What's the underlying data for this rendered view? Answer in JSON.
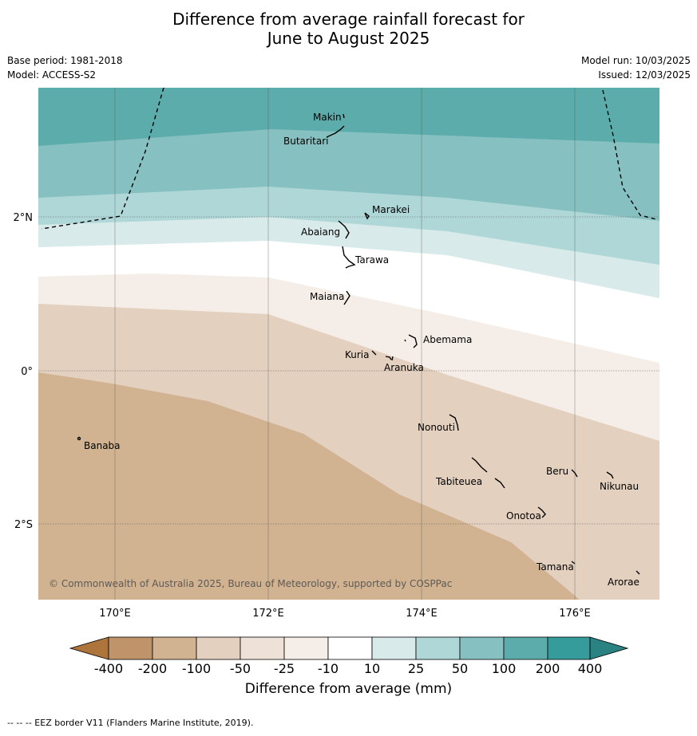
{
  "title_line1": "Difference from average rainfall forecast for",
  "title_line2": "June to August 2025",
  "meta_left": [
    "Base period: 1981-2018",
    "Model: ACCESS-S2"
  ],
  "meta_right": [
    "Model run: 10/03/2025",
    "Issued: 12/03/2025"
  ],
  "copyright": "© Commonwealth of Australia 2025, Bureau of Meteorology, supported by COSPPac",
  "axis": {
    "lon_labels": [
      "170°E",
      "172°E",
      "174°E",
      "176°E"
    ],
    "lat_labels": [
      "2°N",
      "0°",
      "2°S"
    ]
  },
  "islands": [
    {
      "name": "Makin",
      "lon": 173.0,
      "lat": 3.35
    },
    {
      "name": "Butaritari",
      "lon": 172.8,
      "lat": 3.05
    },
    {
      "name": "Marakei",
      "lon": 173.3,
      "lat": 2.0
    },
    {
      "name": "Abaiang",
      "lon": 173.0,
      "lat": 1.85
    },
    {
      "name": "Tarawa",
      "lon": 173.0,
      "lat": 1.4
    },
    {
      "name": "Maiana",
      "lon": 173.05,
      "lat": 0.95
    },
    {
      "name": "Abemama",
      "lon": 173.85,
      "lat": 0.4
    },
    {
      "name": "Kuria",
      "lon": 173.4,
      "lat": 0.22
    },
    {
      "name": "Aranuka",
      "lon": 173.6,
      "lat": 0.17
    },
    {
      "name": "Nonouti",
      "lon": 174.4,
      "lat": -0.65
    },
    {
      "name": "Banaba",
      "lon": 169.55,
      "lat": -0.87
    },
    {
      "name": "Tabiteuea",
      "lon": 174.85,
      "lat": -1.3
    },
    {
      "name": "Beru",
      "lon": 176.0,
      "lat": -1.35
    },
    {
      "name": "Nikunau",
      "lon": 176.45,
      "lat": -1.35
    },
    {
      "name": "Onotoa",
      "lon": 175.55,
      "lat": -1.8
    },
    {
      "name": "Tamana",
      "lon": 175.98,
      "lat": -2.5
    },
    {
      "name": "Arorae",
      "lon": 176.8,
      "lat": -2.65
    }
  ],
  "colorbar": {
    "title": "Difference from average (mm)",
    "ticks": [
      "-400",
      "-200",
      "-100",
      "-50",
      "-25",
      "-10",
      "10",
      "25",
      "50",
      "100",
      "200",
      "400"
    ],
    "colors": [
      "#ad743b",
      "#c0946a",
      "#d1b291",
      "#e3d0bf",
      "#f5ede7",
      "#ffffff",
      "#d8eaea",
      "#afd7d7",
      "#87c0c0",
      "#5cacac",
      "#369b9b",
      "#2a8282"
    ]
  },
  "footnote": "--  --  -- EEZ border V11 (Flanders Marine Institute, 2019)."
}
